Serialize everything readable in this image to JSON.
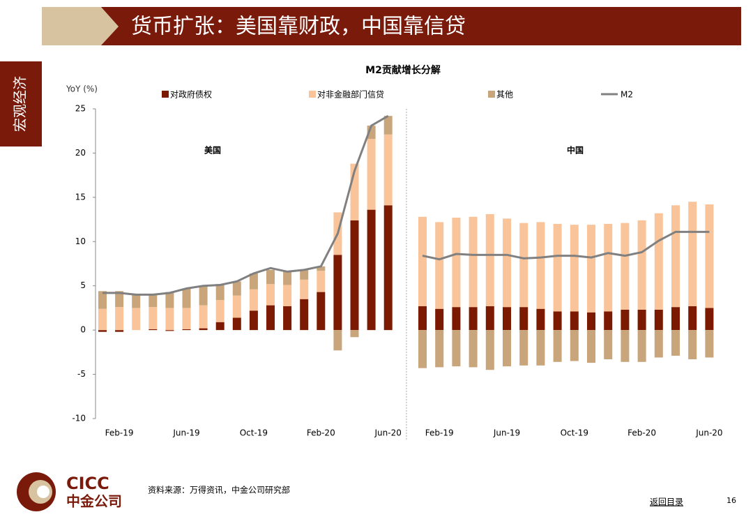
{
  "slide": {
    "title": "货币扩张：美国靠财政，中国靠信贷",
    "section": "宏观经济",
    "source": "资料来源：万得资讯，中金公司研究部",
    "back": "返回目录",
    "page": "16",
    "logo": {
      "en": "CICC",
      "cn": "中金公司"
    }
  },
  "chart_data": {
    "type": "bar",
    "title": "M2贡献增长分解",
    "y_label": "YoY (%)",
    "panels": [
      "美国",
      "中国"
    ],
    "categories": [
      null,
      "Feb-19",
      null,
      null,
      null,
      "Jun-19",
      null,
      null,
      null,
      "Oct-19",
      null,
      null,
      null,
      "Feb-20",
      null,
      null,
      null,
      "Jun-20"
    ],
    "ylim": [
      -10,
      25
    ],
    "yticks": [
      -10,
      -5,
      0,
      5,
      10,
      15,
      20,
      25
    ],
    "series": [
      {
        "name": "对政府债权",
        "color": "#7b1a00",
        "values": [
          [
            -0.2,
            -0.2,
            0,
            0.1,
            -0.1,
            0.1,
            0.2,
            0.9,
            1.4,
            2.2,
            2.8,
            2.7,
            3.5,
            4.3,
            8.5,
            12.4,
            13.6,
            14.1
          ],
          [
            2.7,
            2.4,
            2.6,
            2.6,
            2.7,
            2.6,
            2.6,
            2.4,
            2.1,
            2.1,
            2.0,
            2.1,
            2.3,
            2.3,
            2.3,
            2.6,
            2.7,
            2.5
          ]
        ]
      },
      {
        "name": "对非金融部门信贷",
        "color": "#f9c49a",
        "values": [
          [
            2.4,
            2.6,
            2.5,
            2.5,
            2.5,
            2.4,
            2.6,
            2.5,
            2.5,
            2.4,
            2.4,
            2.4,
            2.2,
            2.4,
            4.8,
            6.4,
            8.0,
            8.0
          ],
          [
            10.1,
            9.8,
            10.1,
            10.2,
            10.4,
            10.0,
            9.5,
            9.8,
            9.9,
            9.8,
            9.9,
            9.9,
            9.8,
            10.1,
            10.9,
            11.5,
            11.8,
            11.7
          ]
        ]
      },
      {
        "name": "其他",
        "color": "#c9a57c",
        "values": [
          [
            2.0,
            1.8,
            1.5,
            1.5,
            1.8,
            2.2,
            2.2,
            1.8,
            1.6,
            1.8,
            1.6,
            1.6,
            1.1,
            0.5,
            -2.3,
            -0.8,
            1.5,
            2.1
          ],
          [
            -4.3,
            -4.2,
            -4.1,
            -4.2,
            -4.5,
            -4.1,
            -4.0,
            -4.0,
            -3.6,
            -3.5,
            -3.7,
            -3.3,
            -3.6,
            -3.6,
            -3.1,
            -2.9,
            -3.3,
            -3.1
          ]
        ]
      },
      {
        "name": "M2",
        "color": "#808080",
        "type": "line",
        "values": [
          [
            4.2,
            4.2,
            4.0,
            4.0,
            4.2,
            4.7,
            5.0,
            5.1,
            5.5,
            6.4,
            7.0,
            6.6,
            6.8,
            7.2,
            10.9,
            18.0,
            23.1,
            24.2
          ],
          [
            8.4,
            8.0,
            8.6,
            8.5,
            8.5,
            8.5,
            8.1,
            8.2,
            8.4,
            8.4,
            8.2,
            8.7,
            8.4,
            8.8,
            10.1,
            11.1,
            11.1,
            11.1
          ]
        ]
      }
    ]
  }
}
